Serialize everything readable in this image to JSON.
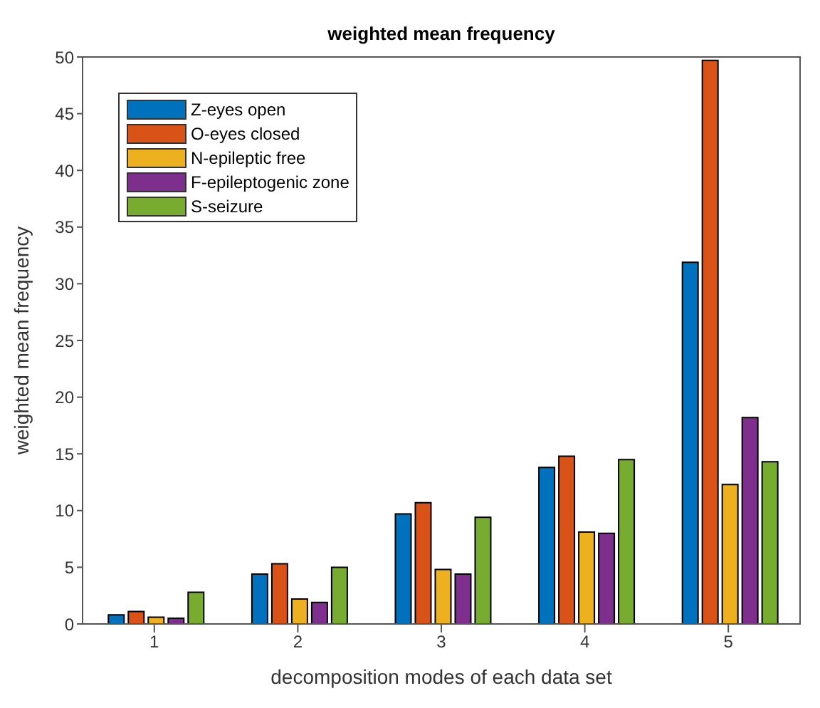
{
  "chart_data": {
    "type": "bar",
    "title": "weighted mean frequency",
    "xlabel": "decomposition modes of each data set",
    "ylabel": "weighted mean frequency",
    "categories": [
      "1",
      "2",
      "3",
      "4",
      "5"
    ],
    "series": [
      {
        "name": "Z-eyes open",
        "color": "#0072bd",
        "values": [
          0.8,
          4.4,
          9.7,
          13.8,
          31.9
        ]
      },
      {
        "name": "O-eyes closed",
        "color": "#d95319",
        "values": [
          1.1,
          5.3,
          10.7,
          14.8,
          49.7
        ]
      },
      {
        "name": "N-epileptic free",
        "color": "#edb120",
        "values": [
          0.6,
          2.2,
          4.8,
          8.1,
          12.3
        ]
      },
      {
        "name": "F-epileptogenic zone",
        "color": "#7e2f8e",
        "values": [
          0.5,
          1.9,
          4.4,
          8.0,
          18.2
        ]
      },
      {
        "name": "S-seizure",
        "color": "#77ac30",
        "values": [
          2.8,
          5.0,
          9.4,
          14.5,
          14.3
        ]
      }
    ],
    "ylim": [
      0,
      50
    ],
    "yticks": [
      0,
      5,
      10,
      15,
      20,
      25,
      30,
      35,
      40,
      45,
      50
    ],
    "grid": false,
    "legend": "top left"
  }
}
